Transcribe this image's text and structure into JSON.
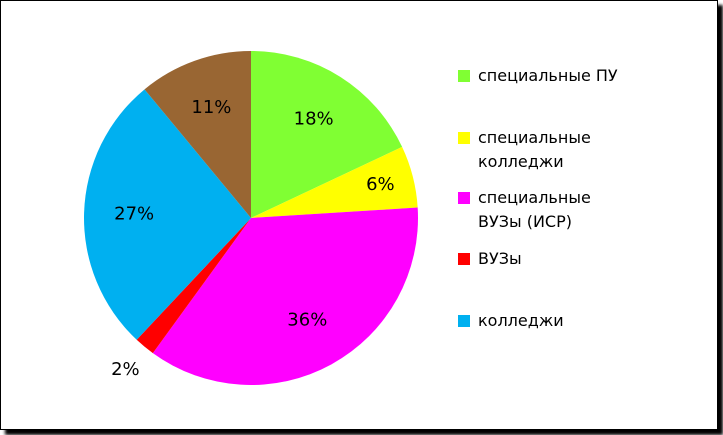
{
  "chart_data": {
    "type": "pie",
    "categories": [
      "специальные ПУ",
      "специальные колледжи",
      "специальные ВУЗы (ИСР)",
      "ВУЗы",
      "колледжи",
      null
    ],
    "values": [
      18,
      6,
      36,
      2,
      27,
      11
    ],
    "value_labels": [
      "18%",
      "6%",
      "36%",
      "2%",
      "27%",
      "11%"
    ],
    "colors": [
      "#80ff33",
      "#ffff00",
      "#ff00ff",
      "#ff0000",
      "#00b0f0",
      "#996633"
    ]
  }
}
